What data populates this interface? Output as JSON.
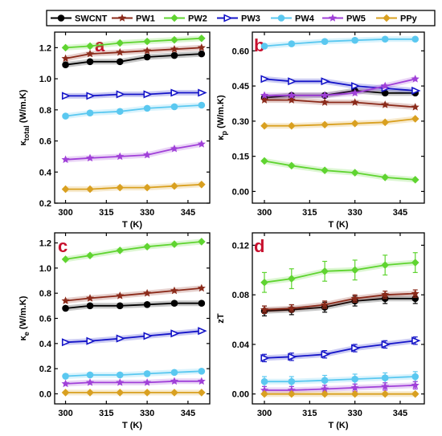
{
  "legend": {
    "series": [
      {
        "name": "SWCNT",
        "color": "#000000",
        "marker": "circle"
      },
      {
        "name": "PW1",
        "color": "#8b2a1a",
        "marker": "star"
      },
      {
        "name": "PW2",
        "color": "#5fd430",
        "marker": "diamond"
      },
      {
        "name": "PW3",
        "color": "#1515c8",
        "marker": "triangle-right"
      },
      {
        "name": "PW4",
        "color": "#5ac8f0",
        "marker": "circle"
      },
      {
        "name": "PW5",
        "color": "#a040d8",
        "marker": "star"
      },
      {
        "name": "PPy",
        "color": "#d9a020",
        "marker": "diamond"
      }
    ]
  },
  "chart_data": [
    {
      "type": "line",
      "panel": "a",
      "xlabel": "T (K)",
      "ylabel": "κ_total (W/m.K)",
      "ylabel_main": "κ",
      "ylabel_sub": "total",
      "ylabel_unit": " (W/m.K)",
      "xlim": [
        296,
        353
      ],
      "ylim": [
        0.2,
        1.3
      ],
      "xticks": [
        "300",
        "315",
        "330",
        "345"
      ],
      "yticks": [
        "0.2",
        "0.4",
        "0.6",
        "0.8",
        "1.0",
        "1.2"
      ],
      "x": [
        300,
        309,
        320,
        330,
        340,
        350
      ],
      "series": [
        {
          "name": "SWCNT",
          "values": [
            1.09,
            1.11,
            1.11,
            1.14,
            1.15,
            1.16
          ]
        },
        {
          "name": "PW1",
          "values": [
            1.13,
            1.16,
            1.17,
            1.18,
            1.19,
            1.2
          ]
        },
        {
          "name": "PW2",
          "values": [
            1.2,
            1.21,
            1.23,
            1.24,
            1.25,
            1.26
          ]
        },
        {
          "name": "PW3",
          "values": [
            0.89,
            0.89,
            0.9,
            0.9,
            0.91,
            0.91
          ]
        },
        {
          "name": "PW4",
          "values": [
            0.76,
            0.78,
            0.79,
            0.81,
            0.82,
            0.83
          ]
        },
        {
          "name": "PW5",
          "values": [
            0.48,
            0.49,
            0.5,
            0.51,
            0.55,
            0.58
          ]
        },
        {
          "name": "PPy",
          "values": [
            0.29,
            0.29,
            0.3,
            0.3,
            0.31,
            0.32
          ]
        }
      ]
    },
    {
      "type": "line",
      "panel": "b",
      "xlabel": "T (K)",
      "ylabel": "κ_p (W/m.K)",
      "ylabel_main": "κ",
      "ylabel_sub": "p",
      "ylabel_unit": " (W/m.K)",
      "xlim": [
        296,
        353
      ],
      "ylim": [
        -0.05,
        0.68
      ],
      "xticks": [
        "300",
        "315",
        "330",
        "345"
      ],
      "yticks": [
        "0.00",
        "0.15",
        "0.30",
        "0.45",
        "0.60"
      ],
      "x": [
        300,
        309,
        320,
        330,
        340,
        350
      ],
      "series": [
        {
          "name": "SWCNT",
          "values": [
            0.4,
            0.41,
            0.41,
            0.43,
            0.42,
            0.42
          ]
        },
        {
          "name": "PW1",
          "values": [
            0.39,
            0.39,
            0.38,
            0.38,
            0.37,
            0.36
          ]
        },
        {
          "name": "PW2",
          "values": [
            0.13,
            0.11,
            0.09,
            0.08,
            0.06,
            0.05
          ]
        },
        {
          "name": "PW3",
          "values": [
            0.48,
            0.47,
            0.47,
            0.45,
            0.44,
            0.43
          ]
        },
        {
          "name": "PW4",
          "values": [
            0.62,
            0.63,
            0.64,
            0.645,
            0.65,
            0.65
          ]
        },
        {
          "name": "PW5",
          "values": [
            0.41,
            0.41,
            0.41,
            0.42,
            0.45,
            0.48
          ]
        },
        {
          "name": "PPy",
          "values": [
            0.28,
            0.28,
            0.285,
            0.29,
            0.295,
            0.31
          ]
        }
      ]
    },
    {
      "type": "line",
      "panel": "c",
      "xlabel": "T (K)",
      "ylabel": "κ_e (W/m.K)",
      "ylabel_main": "κ",
      "ylabel_sub": "e",
      "ylabel_unit": " (W/m.K)",
      "xlim": [
        296,
        353
      ],
      "ylim": [
        -0.08,
        1.28
      ],
      "xticks": [
        "300",
        "315",
        "330",
        "345"
      ],
      "yticks": [
        "0.0",
        "0.2",
        "0.4",
        "0.6",
        "0.8",
        "1.0",
        "1.2"
      ],
      "x": [
        300,
        309,
        320,
        330,
        340,
        350
      ],
      "series": [
        {
          "name": "SWCNT",
          "values": [
            0.68,
            0.7,
            0.7,
            0.71,
            0.72,
            0.72
          ]
        },
        {
          "name": "PW1",
          "values": [
            0.74,
            0.76,
            0.78,
            0.8,
            0.82,
            0.84
          ]
        },
        {
          "name": "PW2",
          "values": [
            1.07,
            1.1,
            1.14,
            1.17,
            1.19,
            1.21
          ]
        },
        {
          "name": "PW3",
          "values": [
            0.41,
            0.42,
            0.44,
            0.46,
            0.48,
            0.5
          ]
        },
        {
          "name": "PW4",
          "values": [
            0.14,
            0.15,
            0.15,
            0.16,
            0.17,
            0.18
          ]
        },
        {
          "name": "PW5",
          "values": [
            0.08,
            0.09,
            0.09,
            0.09,
            0.1,
            0.1
          ]
        },
        {
          "name": "PPy",
          "values": [
            0.01,
            0.01,
            0.01,
            0.01,
            0.01,
            0.01
          ]
        }
      ]
    },
    {
      "type": "line",
      "panel": "d",
      "xlabel": "T (K)",
      "ylabel": "zT",
      "ylabel_main": "zT",
      "ylabel_sub": "",
      "ylabel_unit": "",
      "xlim": [
        296,
        353
      ],
      "ylim": [
        -0.008,
        0.13
      ],
      "xticks": [
        "300",
        "315",
        "330",
        "345"
      ],
      "yticks": [
        "0.00",
        "0.04",
        "0.08",
        "0.12"
      ],
      "x": [
        300,
        309,
        320,
        330,
        340,
        350
      ],
      "series": [
        {
          "name": "SWCNT",
          "values": [
            0.067,
            0.068,
            0.07,
            0.075,
            0.077,
            0.077
          ],
          "err": [
            0.004,
            0.004,
            0.004,
            0.004,
            0.004,
            0.004
          ]
        },
        {
          "name": "PW1",
          "values": [
            0.068,
            0.069,
            0.072,
            0.077,
            0.08,
            0.081
          ],
          "err": [
            0.003,
            0.003,
            0.003,
            0.003,
            0.003,
            0.003
          ]
        },
        {
          "name": "PW2",
          "values": [
            0.09,
            0.093,
            0.099,
            0.1,
            0.104,
            0.106
          ],
          "err": [
            0.008,
            0.008,
            0.008,
            0.008,
            0.008,
            0.008
          ]
        },
        {
          "name": "PW3",
          "values": [
            0.029,
            0.03,
            0.032,
            0.037,
            0.04,
            0.043
          ],
          "err": [
            0.003,
            0.003,
            0.003,
            0.003,
            0.003,
            0.003
          ]
        },
        {
          "name": "PW4",
          "values": [
            0.01,
            0.01,
            0.011,
            0.012,
            0.013,
            0.014
          ],
          "err": [
            0.004,
            0.004,
            0.004,
            0.004,
            0.004,
            0.004
          ]
        },
        {
          "name": "PW5",
          "values": [
            0.003,
            0.003,
            0.004,
            0.005,
            0.006,
            0.007
          ],
          "err": [
            0.003,
            0.003,
            0.003,
            0.003,
            0.003,
            0.003
          ]
        },
        {
          "name": "PPy",
          "values": [
            0.0,
            0.0,
            0.0,
            0.0,
            0.0,
            0.0
          ],
          "err": [
            0.001,
            0.001,
            0.001,
            0.001,
            0.001,
            0.001
          ]
        }
      ]
    }
  ]
}
